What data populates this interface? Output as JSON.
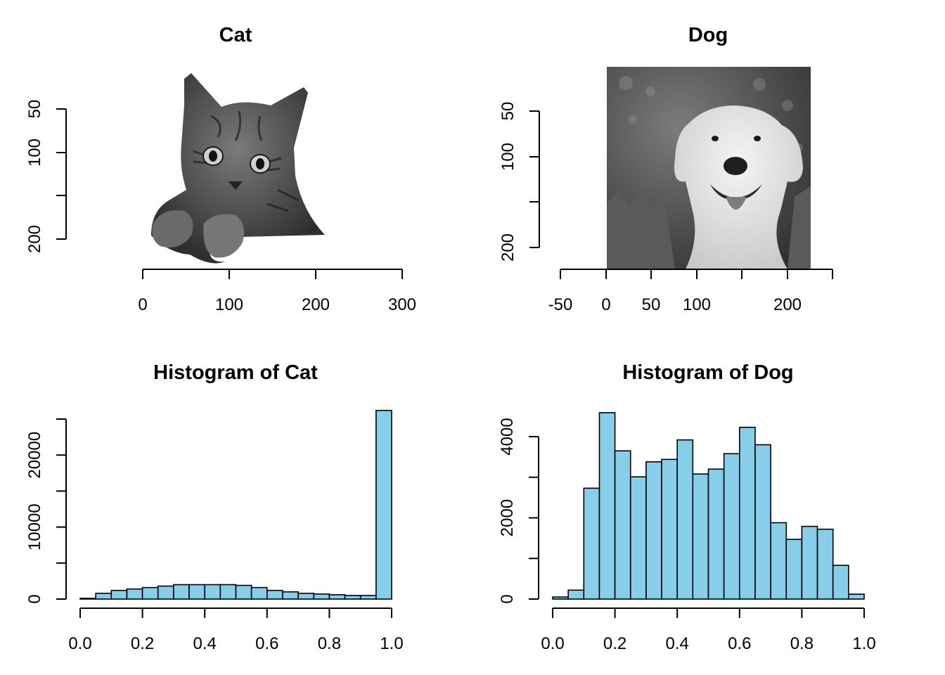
{
  "panels": [
    {
      "title": "Cat",
      "picture": "cat-photo-grayscale",
      "xticks": [
        "0",
        "100",
        "200",
        "300"
      ],
      "yticks": [
        "50",
        "100",
        "200"
      ]
    },
    {
      "title": "Dog",
      "picture": "dog-photo-grayscale",
      "xticks": [
        "-50",
        "0",
        "50",
        "100",
        "200"
      ],
      "yticks": [
        "50",
        "100",
        "200"
      ]
    }
  ],
  "chart_data": [
    {
      "type": "bar",
      "title": "Histogram of Cat",
      "xlabel": "",
      "ylabel": "",
      "bar_color": "#87CEEB",
      "bin_edges": [
        0.0,
        0.05,
        0.1,
        0.15,
        0.2,
        0.25,
        0.3,
        0.35,
        0.4,
        0.45,
        0.5,
        0.55,
        0.6,
        0.65,
        0.7,
        0.75,
        0.8,
        0.85,
        0.9,
        0.95,
        1.0
      ],
      "values": [
        100,
        800,
        1200,
        1400,
        1600,
        1800,
        2000,
        2000,
        2000,
        2000,
        1900,
        1600,
        1200,
        1000,
        800,
        700,
        600,
        500,
        500,
        26200
      ],
      "xticks": [
        "0.0",
        "0.2",
        "0.4",
        "0.6",
        "0.8",
        "1.0"
      ],
      "yticks": [
        "0",
        "10000",
        "20000"
      ],
      "xlim": [
        0,
        1
      ],
      "ylim": [
        0,
        25000
      ]
    },
    {
      "type": "bar",
      "title": "Histogram of Dog",
      "xlabel": "",
      "ylabel": "",
      "bar_color": "#87CEEB",
      "bin_edges": [
        0.0,
        0.05,
        0.1,
        0.15,
        0.2,
        0.25,
        0.3,
        0.35,
        0.4,
        0.45,
        0.5,
        0.55,
        0.6,
        0.65,
        0.7,
        0.75,
        0.8,
        0.85,
        0.9,
        0.95,
        1.0
      ],
      "values": [
        50,
        220,
        2730,
        4590,
        3650,
        3010,
        3380,
        3440,
        3920,
        3080,
        3200,
        3580,
        4230,
        3800,
        1880,
        1470,
        1790,
        1720,
        830,
        120
      ],
      "xticks": [
        "0.0",
        "0.2",
        "0.4",
        "0.6",
        "0.8",
        "1.0"
      ],
      "yticks": [
        "0",
        "2000",
        "4000"
      ],
      "xlim": [
        0,
        1
      ],
      "ylim": [
        0,
        4000
      ]
    }
  ]
}
